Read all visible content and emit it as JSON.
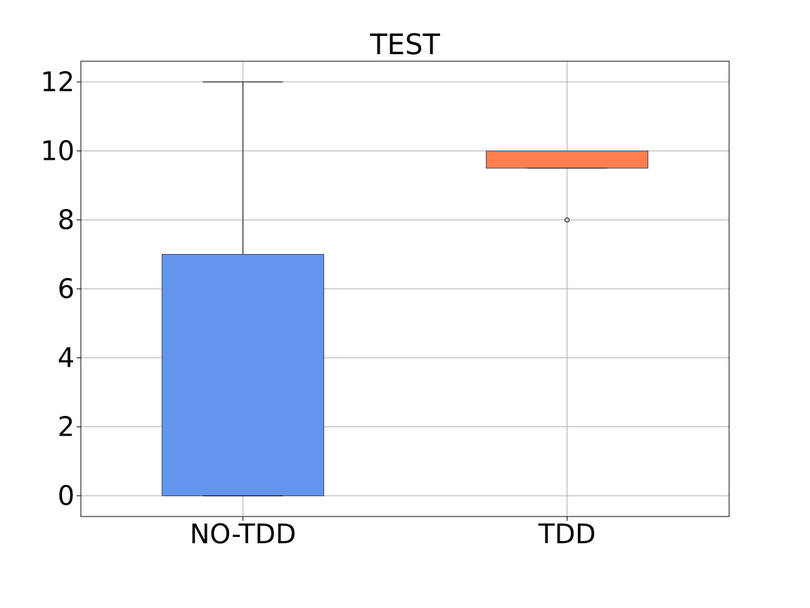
{
  "chart_data": {
    "type": "box",
    "title": "TEST",
    "xlabel": "",
    "ylabel": "",
    "ylim": [
      -0.6,
      12.6
    ],
    "yticks": [
      0,
      2,
      4,
      6,
      8,
      10,
      12
    ],
    "grid": true,
    "boxes": [
      {
        "category": "NO-TDD",
        "whisker_low": 0,
        "q1": 0,
        "median": 0,
        "q3": 7,
        "whisker_high": 12,
        "outliers": [],
        "color": "#6495ED"
      },
      {
        "category": "TDD",
        "whisker_low": 9.5,
        "q1": 9.5,
        "median": 9.5,
        "q3": 10,
        "whisker_high": 10,
        "outliers": [
          8
        ],
        "color": "#FF7F50"
      }
    ]
  }
}
